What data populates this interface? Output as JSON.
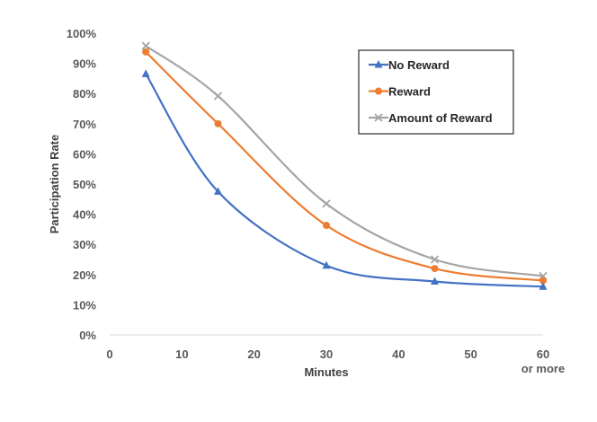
{
  "chart_data": {
    "type": "line",
    "xlabel": "Minutes",
    "ylabel": "Participation Rate",
    "xlim": [
      0,
      60
    ],
    "ylim": [
      0,
      100
    ],
    "x_ticks": [
      "0",
      "10",
      "20",
      "30",
      "40",
      "50",
      "60"
    ],
    "x_tick_last_extra": "or more",
    "y_ticks": [
      "0%",
      "10%",
      "20%",
      "30%",
      "40%",
      "50%",
      "60%",
      "70%",
      "80%",
      "90%",
      "100%"
    ],
    "grid": false,
    "legend": "top-right",
    "x": [
      5,
      15,
      30,
      45,
      60
    ],
    "series": [
      {
        "name": "No Reward",
        "values": [
          86.5,
          47.5,
          23,
          17.7,
          16
        ],
        "color": "#4472c4",
        "marker": "triangle"
      },
      {
        "name": "Reward",
        "values": [
          93.8,
          70,
          36.3,
          22,
          18
        ],
        "color": "#ed7d31",
        "marker": "circle"
      },
      {
        "name": "Amount of Reward",
        "values": [
          95.8,
          79.2,
          43.5,
          25,
          19.5
        ],
        "color": "#a5a5a5",
        "marker": "x"
      }
    ]
  }
}
